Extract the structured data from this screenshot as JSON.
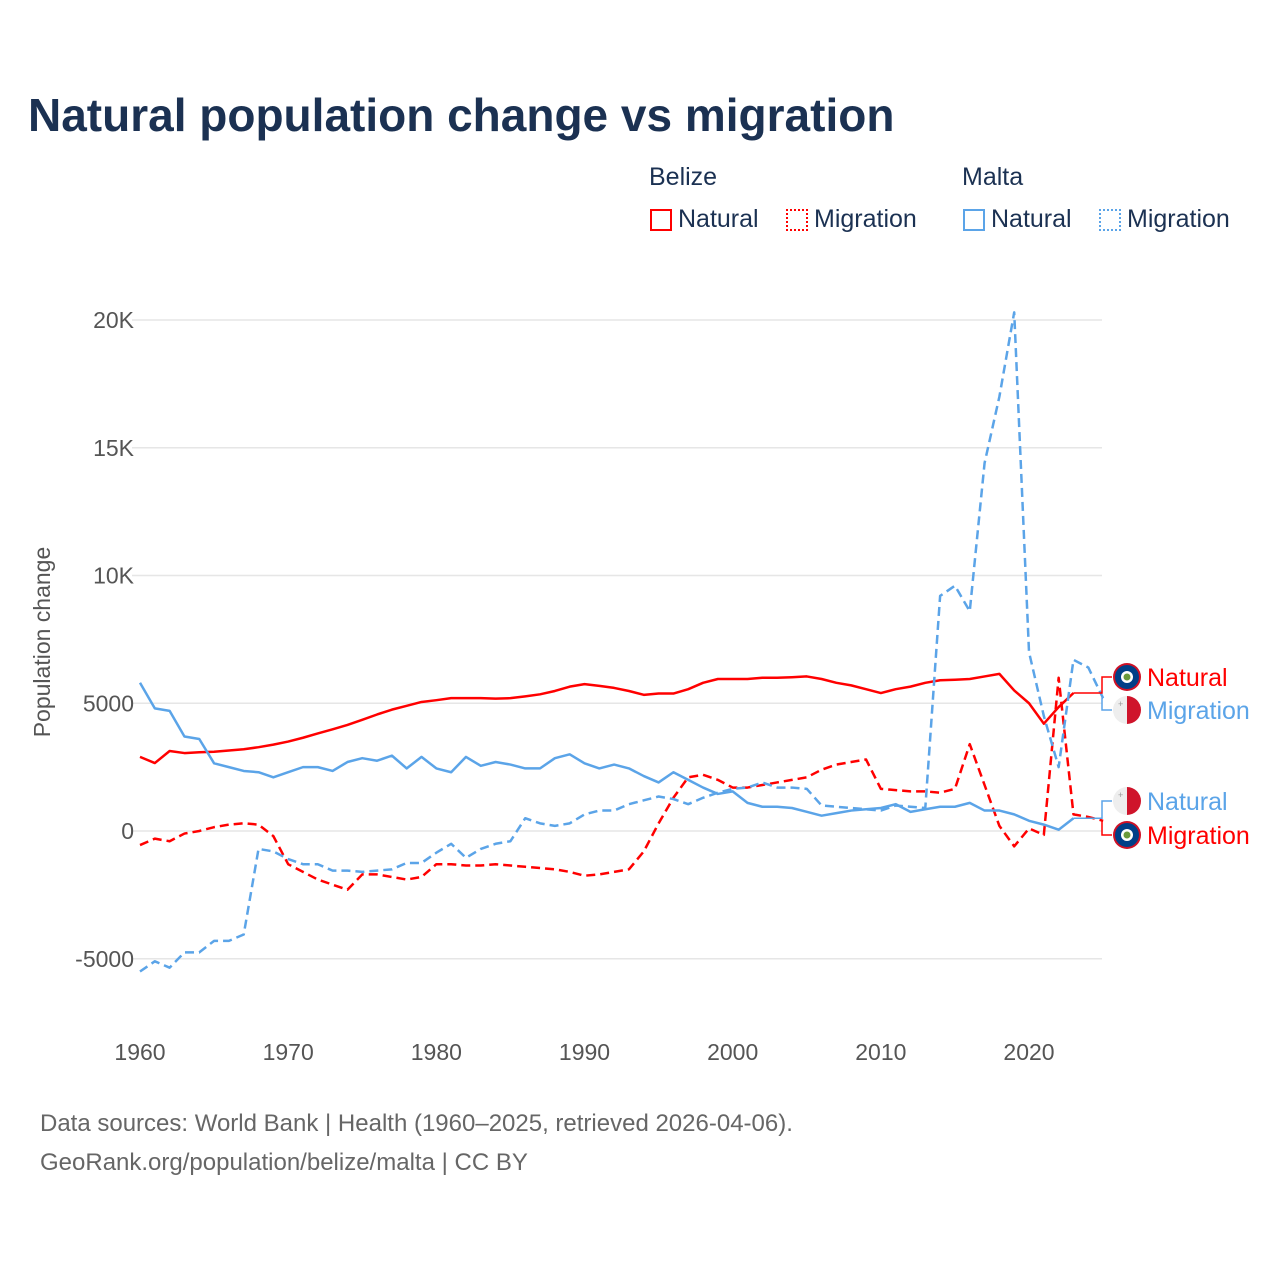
{
  "chart_data": {
    "type": "line",
    "title": "Natural population change vs migration",
    "xlabel": "",
    "ylabel": "Population change",
    "xlim": [
      1960,
      2025
    ],
    "ylim": [
      -7000,
      21000
    ],
    "x_ticks": [
      1960,
      1970,
      1980,
      1990,
      2000,
      2010,
      2020
    ],
    "y_ticks": [
      -5000,
      0,
      5000,
      10000,
      15000,
      20000
    ],
    "y_tick_labels": [
      "-5000",
      "0",
      "5000",
      "10K",
      "15K",
      "20K"
    ],
    "grid": true,
    "legend": {
      "placement": "top-right",
      "groups": [
        {
          "name": "Belize",
          "items": [
            "Natural",
            "Migration"
          ]
        },
        {
          "name": "Malta",
          "items": [
            "Natural",
            "Migration"
          ]
        }
      ]
    },
    "series": [
      {
        "country": "Belize",
        "name": "Natural",
        "color": "#ff0000",
        "dash": false,
        "start": 1960,
        "values": [
          2900,
          2660,
          3130,
          3050,
          3080,
          3100,
          3150,
          3200,
          3280,
          3380,
          3500,
          3650,
          3820,
          3980,
          4150,
          4350,
          4560,
          4750,
          4900,
          5050,
          5120,
          5200,
          5200,
          5200,
          5180,
          5200,
          5270,
          5350,
          5480,
          5650,
          5750,
          5680,
          5600,
          5480,
          5330,
          5380,
          5380,
          5550,
          5800,
          5950,
          5950,
          5950,
          6000,
          6000,
          6020,
          6050,
          5950,
          5800,
          5700,
          5550,
          5400,
          5550,
          5650,
          5800,
          5900,
          5920,
          5950,
          6050,
          6150,
          5500,
          5000,
          4200,
          4850,
          5400
        ]
      },
      {
        "country": "Belize",
        "name": "Migration",
        "color": "#ff0000",
        "dash": true,
        "start": 1960,
        "values": [
          -550,
          -300,
          -400,
          -100,
          0,
          150,
          250,
          300,
          250,
          -200,
          -1300,
          -1600,
          -1900,
          -2100,
          -2300,
          -1700,
          -1700,
          -1800,
          -1900,
          -1800,
          -1300,
          -1300,
          -1350,
          -1350,
          -1300,
          -1350,
          -1400,
          -1450,
          -1500,
          -1600,
          -1750,
          -1700,
          -1600,
          -1500,
          -800,
          300,
          1300,
          2100,
          2200,
          2000,
          1700,
          1700,
          1800,
          1900,
          2000,
          2100,
          2400,
          2600,
          2700,
          2800,
          1650,
          1600,
          1550,
          1550,
          1500,
          1650,
          3400,
          1800,
          200,
          -600,
          100,
          -150,
          6000,
          650,
          550,
          400
        ]
      },
      {
        "country": "Malta",
        "name": "Natural",
        "color": "#5ba4e8",
        "dash": false,
        "start": 1960,
        "values": [
          5800,
          4800,
          4700,
          3700,
          3600,
          2650,
          2500,
          2350,
          2300,
          2100,
          2300,
          2500,
          2500,
          2350,
          2700,
          2850,
          2750,
          2950,
          2450,
          2900,
          2450,
          2300,
          2900,
          2550,
          2700,
          2600,
          2450,
          2450,
          2850,
          3000,
          2650,
          2450,
          2600,
          2450,
          2150,
          1900,
          2300,
          2000,
          1700,
          1450,
          1550,
          1100,
          950,
          950,
          900,
          750,
          600,
          700,
          800,
          850,
          900,
          1050,
          750,
          850,
          950,
          950,
          1100,
          800,
          800,
          650,
          400,
          250,
          50,
          500
        ]
      },
      {
        "country": "Malta",
        "name": "Migration",
        "color": "#5ba4e8",
        "dash": true,
        "start": 1960,
        "values": [
          -5500,
          -5100,
          -5350,
          -4750,
          -4750,
          -4300,
          -4300,
          -4050,
          -700,
          -800,
          -1100,
          -1300,
          -1300,
          -1550,
          -1550,
          -1600,
          -1550,
          -1500,
          -1250,
          -1250,
          -850,
          -500,
          -1050,
          -700,
          -500,
          -400,
          500,
          300,
          200,
          300,
          650,
          800,
          800,
          1050,
          1200,
          1350,
          1250,
          1050,
          1300,
          1500,
          1650,
          1700,
          1900,
          1700,
          1700,
          1650,
          1000,
          950,
          900,
          850,
          800,
          1000,
          950,
          900,
          9200,
          9600,
          8600,
          14400,
          17000,
          20300,
          7000,
          4500,
          2500,
          6700,
          6400,
          5200
        ]
      }
    ],
    "end_labels": [
      {
        "text": "Natural",
        "country": "Belize",
        "color": "#ff0000"
      },
      {
        "text": "Migration",
        "country": "Malta",
        "color": "#5ba4e8"
      },
      {
        "text": "Natural",
        "country": "Malta",
        "color": "#5ba4e8"
      },
      {
        "text": "Migration",
        "country": "Belize",
        "color": "#ff0000"
      }
    ]
  },
  "legend": {
    "belize": "Belize",
    "malta": "Malta",
    "natural": "Natural",
    "migration": "Migration"
  },
  "footer": {
    "line1": "Data sources: World Bank | Health (1960–2025, retrieved 2026-04-06).",
    "line2": "GeoRank.org/population/belize/malta | CC BY"
  },
  "colors": {
    "belize": "#ff0000",
    "malta": "#5ba4e8",
    "title": "#1b3152"
  }
}
